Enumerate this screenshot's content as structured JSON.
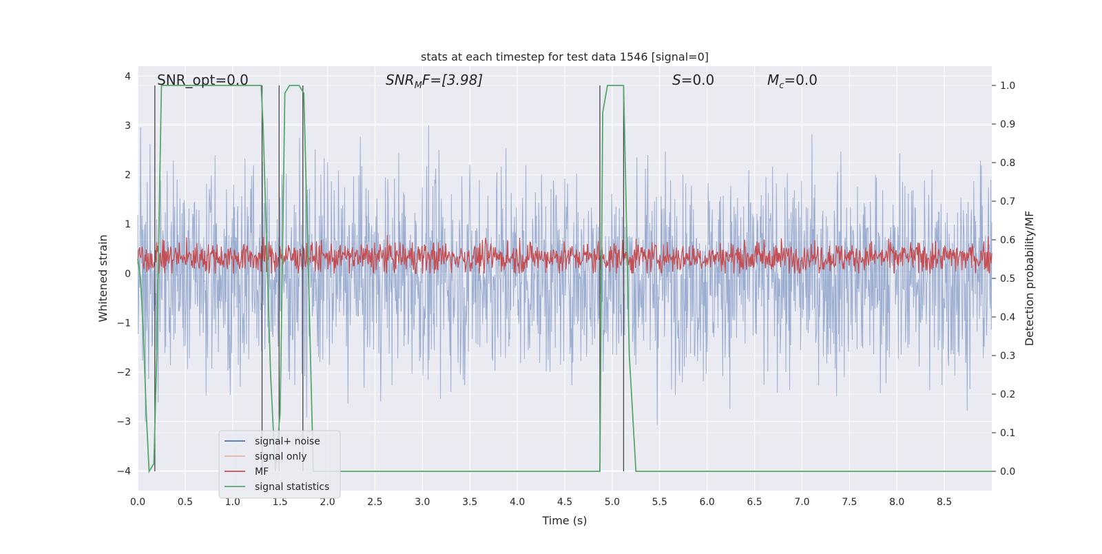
{
  "chart_data": {
    "type": "line",
    "title": "stats at each timestep for test data 1546 [signal=0]",
    "xlabel": "Time (s)",
    "ylabel": "Whitened strain",
    "y2label": "Detection probability/MF",
    "xlim": [
      0.0,
      9.0
    ],
    "ylim": [
      -4.4,
      4.2
    ],
    "y2lim": [
      -0.05,
      1.05
    ],
    "xticks": [
      0.0,
      0.5,
      1.0,
      1.5,
      2.0,
      2.5,
      3.0,
      3.5,
      4.0,
      4.5,
      5.0,
      5.5,
      6.0,
      6.5,
      7.0,
      7.5,
      8.0,
      8.5
    ],
    "yticks": [
      -4,
      -3,
      -2,
      -1,
      0,
      1,
      2,
      3,
      4
    ],
    "y2ticks": [
      0.0,
      0.1,
      0.2,
      0.3,
      0.4,
      0.5,
      0.6,
      0.7,
      0.8,
      0.9,
      1.0
    ],
    "grid": true,
    "legend_location": "lower-left",
    "annotations": {
      "snr_opt": "SNR_opt=0.0",
      "snr_mf_base": "SNR",
      "snr_mf_sub": "M",
      "snr_mf_rest": "F=[3.98]",
      "s_label": "S",
      "s_value": "=0.0",
      "mc_base": "M",
      "mc_sub": "c",
      "mc_value": "=0.0"
    },
    "series": [
      {
        "name": "signal+ noise",
        "color": "#4c72b0",
        "description_of_values": "whitened strain noise, roughly -4 to 3.8"
      },
      {
        "name": "signal only",
        "color": "#dd8452",
        "values": []
      },
      {
        "name": "MF",
        "color": "#c44e52",
        "description_of_values": "matched filter output, roughly 0 to 1"
      },
      {
        "name": "signal statistics",
        "color": "#55a868",
        "x": [
          0.0,
          0.03,
          0.06,
          0.09,
          0.12,
          0.17,
          0.2,
          0.25,
          0.3,
          1.3,
          1.32,
          1.4,
          1.45,
          1.5,
          1.55,
          1.6,
          1.65,
          1.7,
          1.75,
          1.8,
          1.85,
          4.87,
          4.9,
          4.95,
          5.05,
          5.12,
          5.18,
          5.25,
          9.0
        ],
        "y": [
          0.55,
          0.5,
          0.35,
          0.15,
          0.0,
          0.02,
          0.3,
          1.0,
          1.0,
          1.0,
          0.9,
          0.25,
          0.0,
          0.15,
          0.98,
          1.0,
          1.0,
          1.0,
          0.98,
          0.5,
          0.0,
          0.0,
          0.93,
          1.0,
          1.0,
          1.0,
          0.3,
          0.0,
          0.0
        ]
      }
    ],
    "vlines_y2": [
      {
        "x": 0.18,
        "from": 0.0,
        "to": 1.0
      },
      {
        "x": 1.31,
        "from": 0.0,
        "to": 1.0
      },
      {
        "x": 1.49,
        "from": 0.0,
        "to": 1.0
      },
      {
        "x": 1.74,
        "from": 0.0,
        "to": 1.0
      },
      {
        "x": 4.87,
        "from": 0.0,
        "to": 1.0
      },
      {
        "x": 5.12,
        "from": 0.0,
        "to": 1.0
      }
    ]
  },
  "legend": {
    "items": [
      {
        "label": "signal+ noise",
        "color": "#4c72b0"
      },
      {
        "label": "signal only",
        "color": "#dd8452"
      },
      {
        "label": "MF",
        "color": "#c44e52"
      },
      {
        "label": "signal statistics",
        "color": "#55a868"
      }
    ]
  }
}
